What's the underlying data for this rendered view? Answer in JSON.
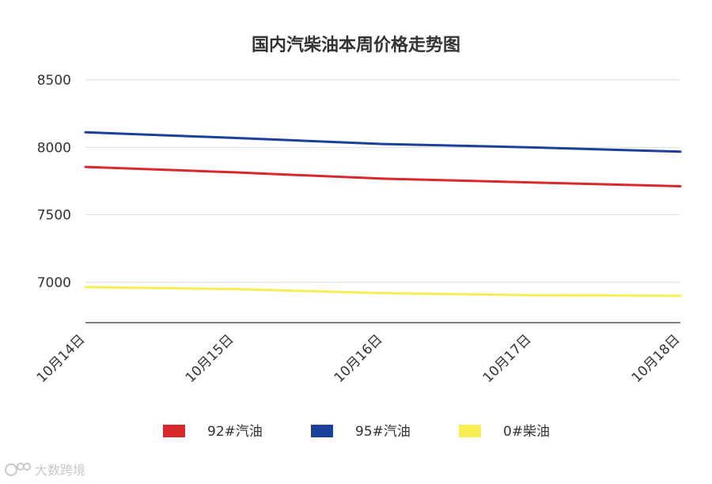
{
  "chart_data": {
    "type": "line",
    "title": "国内汽柴油本周价格走势图",
    "categories": [
      "10月14日",
      "10月15日",
      "10月16日",
      "10月17日",
      "10月18日"
    ],
    "series": [
      {
        "name": "92#汽油",
        "color": "#d9282b",
        "values": [
          7855,
          7815,
          7768,
          7740,
          7712
        ]
      },
      {
        "name": "95#汽油",
        "color": "#1b3f9a",
        "values": [
          8112,
          8070,
          8025,
          8000,
          7968
        ]
      },
      {
        "name": "0#柴油",
        "color": "#f7ee55",
        "values": [
          6965,
          6950,
          6920,
          6905,
          6900
        ]
      }
    ],
    "yticks": [
      7000,
      7500,
      8000,
      8500
    ],
    "ylim": [
      6700,
      8500
    ],
    "xlabel": "",
    "ylabel": "",
    "grid": true,
    "legend": "bottom"
  },
  "watermark": {
    "text": "大数跨境",
    "icon": "logo-icon"
  }
}
